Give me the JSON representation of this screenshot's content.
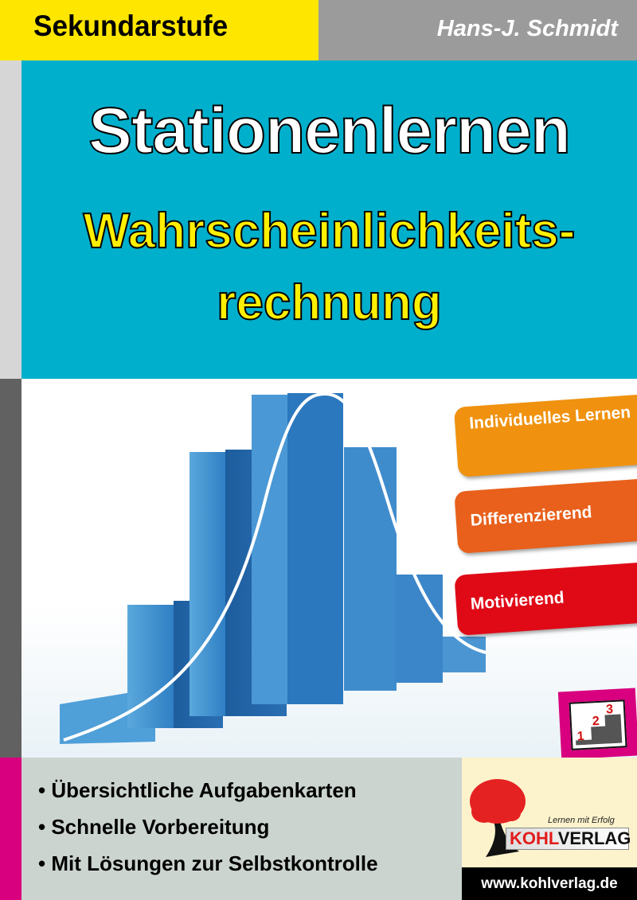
{
  "header": {
    "series": "Sekundarstufe",
    "author": "Hans-J. Schmidt"
  },
  "title": {
    "line1": "Stationenlernen",
    "line2": "Wahrscheinlichkeits-",
    "line3": "rechnung"
  },
  "badges": [
    {
      "label": "Individuelles Lernen",
      "color": "#f0920f"
    },
    {
      "label": "Differenzierend",
      "color": "#e8601b"
    },
    {
      "label": "Motivierend",
      "color": "#e00a17"
    }
  ],
  "levels_icon": {
    "steps": [
      "1",
      "2",
      "3"
    ]
  },
  "features": [
    "• Übersichtliche Aufgabenkarten",
    "• Schnelle Vorbereitung",
    "• Mit Lösungen zur Selbstkontrolle"
  ],
  "publisher": {
    "slogan": "Lernen mit Erfolg",
    "name_part1": "KOHL",
    "name_part2": "VERLAG",
    "url": "www.kohlverlag.de"
  },
  "colors": {
    "yellow": "#ffe600",
    "cyan": "#00afcc",
    "grey": "#9b9b9b",
    "magenta": "#d8007f"
  }
}
